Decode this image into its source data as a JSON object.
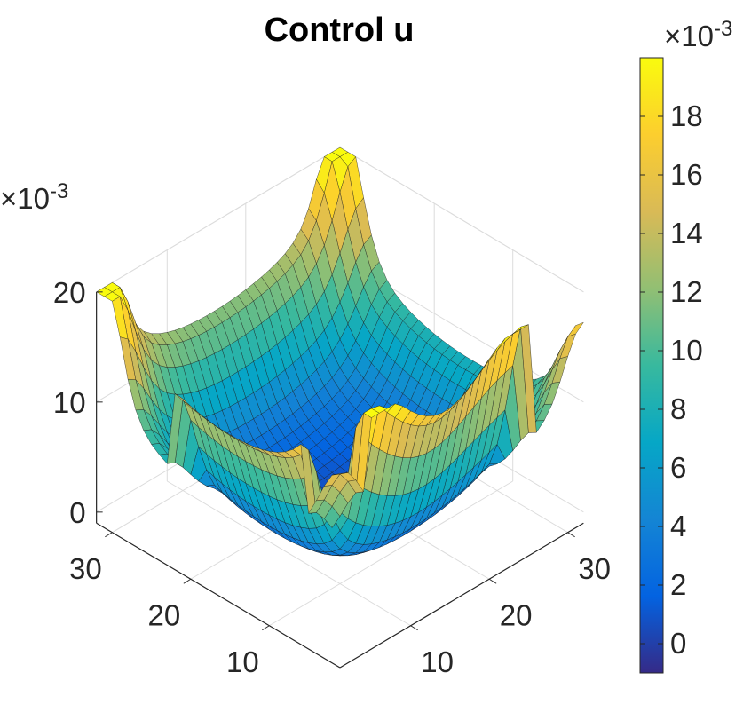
{
  "chart_data": {
    "type": "surface",
    "title": "Control u",
    "x_ticks": [
      "10",
      "20",
      "30"
    ],
    "y_ticks": [
      "10",
      "20",
      "30"
    ],
    "z_ticks": [
      "0",
      "10",
      "20"
    ],
    "z_multiplier": "×10",
    "z_multiplier_exp": "-3",
    "xlim": [
      1,
      32
    ],
    "ylim": [
      1,
      32
    ],
    "zlim": [
      -1,
      20
    ],
    "colorbar": {
      "ticks": [
        "0",
        "2",
        "4",
        "6",
        "8",
        "10",
        "12",
        "14",
        "16",
        "18"
      ],
      "tick_values": [
        0,
        2,
        4,
        6,
        8,
        10,
        12,
        14,
        16,
        18
      ],
      "multiplier": "×10",
      "multiplier_exp": "-3",
      "range": [
        -1,
        20
      ],
      "colormap": "parula"
    },
    "grid": true,
    "surface_description_values": {
      "grid_size": 32,
      "interior_level": 0,
      "side_ridge_left_peak": 17,
      "side_ridge_right_peak": 12,
      "far_edge_level": 9,
      "corner_peaks": [
        16,
        19,
        7,
        3
      ],
      "near_corner_level": 3
    }
  },
  "colors": {
    "grid": "#dcdcdc",
    "axis": "#262626",
    "edge": "#1a1a1a",
    "parula": [
      "#352a87",
      "#0363e1",
      "#1485d4",
      "#06a7c6",
      "#38b99e",
      "#92bf73",
      "#d9ba56",
      "#fcce2e",
      "#f9fb0e"
    ]
  }
}
